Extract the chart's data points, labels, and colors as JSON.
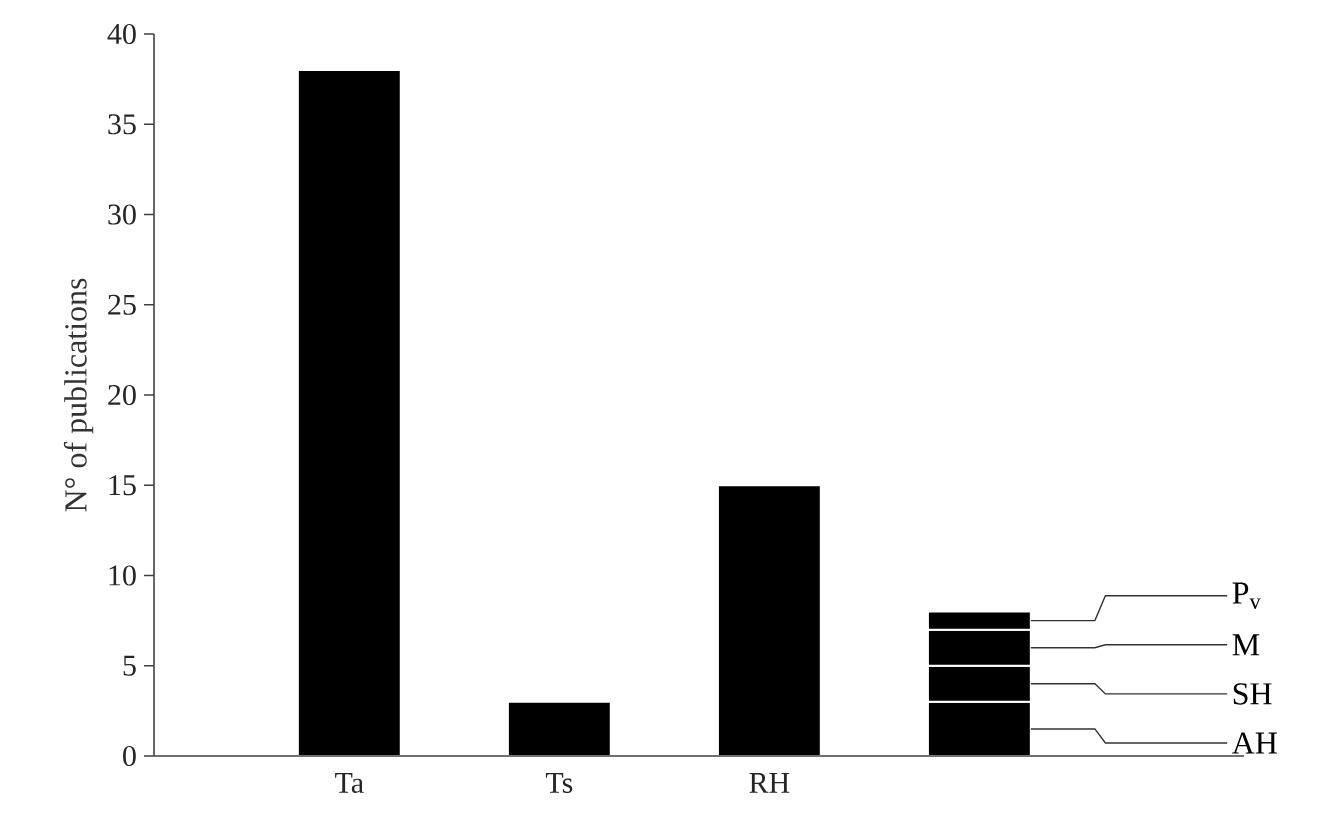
{
  "chart_data": {
    "type": "bar",
    "stacked": true,
    "ylabel": "N° of publications",
    "categories": [
      "Ta",
      "Ts",
      "RH",
      null
    ],
    "series": [
      {
        "color": "#000000",
        "values": [
          38,
          3,
          15,
          null
        ]
      },
      {
        "name": "AH",
        "color": "#000000",
        "values": [
          null,
          null,
          null,
          3
        ]
      },
      {
        "name": "SH",
        "color": "#000000",
        "values": [
          null,
          null,
          null,
          2
        ]
      },
      {
        "name": "M",
        "color": "#000000",
        "values": [
          null,
          null,
          null,
          2
        ]
      },
      {
        "name": "P$_{v}$",
        "color": "#000000",
        "values": [
          null,
          null,
          null,
          1
        ]
      }
    ],
    "ylim": [
      0,
      40
    ],
    "yticks": [
      0,
      5,
      10,
      15,
      20,
      25,
      30,
      35,
      40
    ]
  }
}
